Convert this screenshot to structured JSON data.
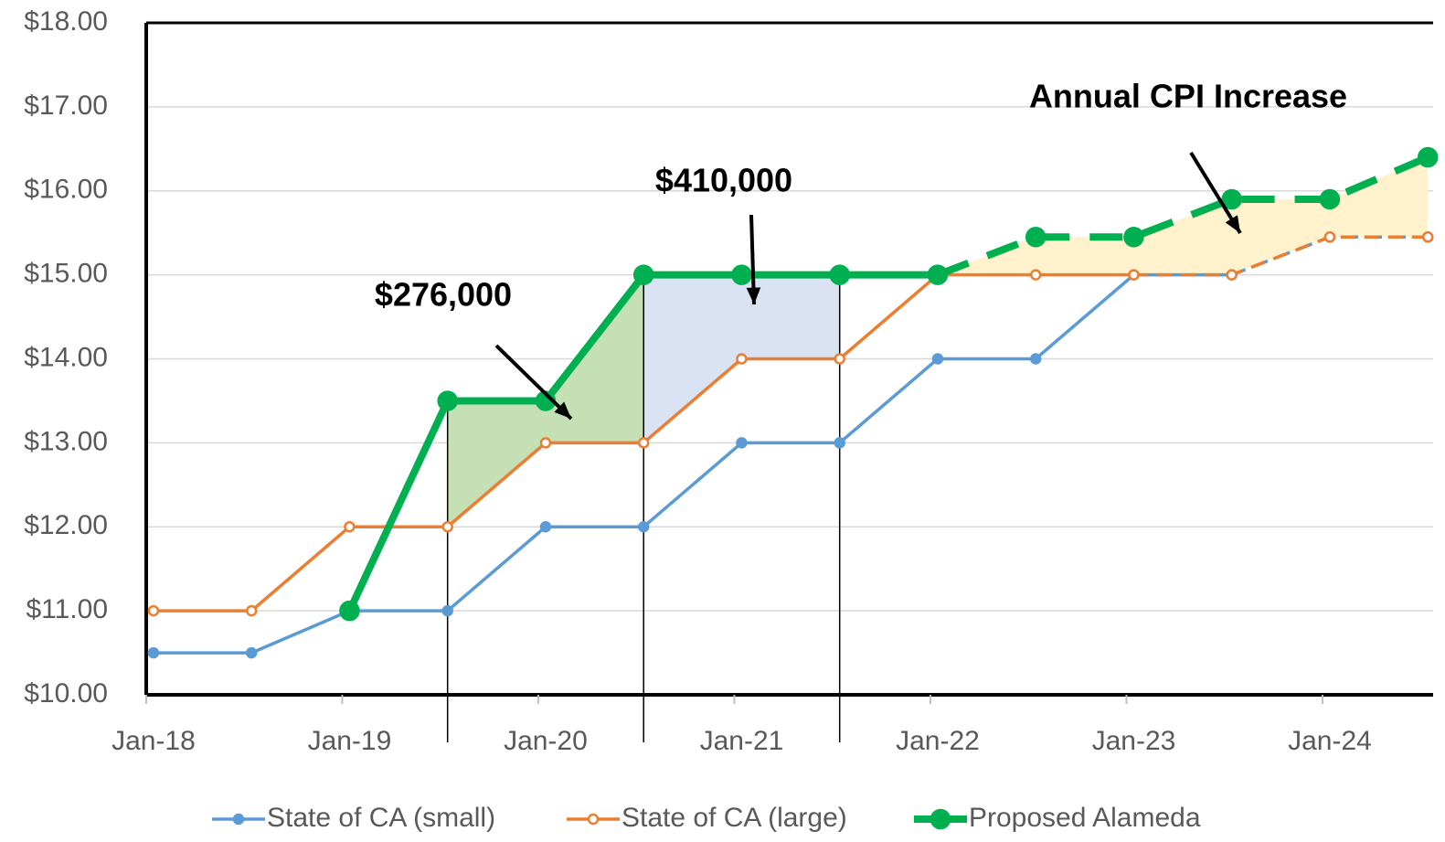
{
  "chart_data": {
    "type": "line",
    "x": [
      2018,
      2018.5,
      2019,
      2019.5,
      2020,
      2020.5,
      2021,
      2021.5,
      2022,
      2022.5,
      2023,
      2023.5,
      2024,
      2024.5
    ],
    "series": [
      {
        "name": "State of CA (small)",
        "color": "#5b9bd5",
        "dashed_from": 11,
        "values": [
          10.5,
          10.5,
          11,
          11,
          12,
          12,
          13,
          13,
          14,
          14,
          15,
          15,
          15.45,
          15.45
        ]
      },
      {
        "name": "State of CA (large)",
        "color": "#ed7d31",
        "dashed_from": 10,
        "values": [
          11,
          11,
          12,
          12,
          13,
          13,
          14,
          14,
          15,
          15,
          15,
          15,
          15.45,
          15.45
        ]
      },
      {
        "name": "Proposed Alameda",
        "color": "#00b050",
        "dashed_from": 8,
        "values": [
          null,
          null,
          11,
          13.5,
          13.5,
          15,
          15,
          15,
          15,
          15.45,
          15.45,
          15.9,
          15.9,
          16.4
        ]
      }
    ],
    "annotations": [
      "$276,000",
      "$410,000",
      "Annual CPI Increase"
    ],
    "shaded_ranges": [
      {
        "x": [
          2019.5,
          2020.5
        ],
        "color": "#c5e0b4"
      },
      {
        "x": [
          2020.5,
          2021.5
        ],
        "color": "#dae3f3"
      },
      {
        "x": [
          2022,
          2024.5
        ],
        "color": "#fff2cc"
      }
    ],
    "xlim": [
      2017.963,
      2024.527
    ],
    "xticks": [
      {
        "value": 2018,
        "label": "Jan-18"
      },
      {
        "value": 2019,
        "label": "Jan-19"
      },
      {
        "value": 2020,
        "label": "Jan-20"
      },
      {
        "value": 2021,
        "label": "Jan-21"
      },
      {
        "value": 2022,
        "label": "Jan-22"
      },
      {
        "value": 2023,
        "label": "Jan-23"
      },
      {
        "value": 2024,
        "label": "Jan-24"
      }
    ],
    "ylim": [
      10,
      18
    ],
    "yticks": [
      {
        "value": 10,
        "label": "$10.00"
      },
      {
        "value": 11,
        "label": "$11.00"
      },
      {
        "value": 12,
        "label": "$12.00"
      },
      {
        "value": 13,
        "label": "$13.00"
      },
      {
        "value": 14,
        "label": "$14.00"
      },
      {
        "value": 15,
        "label": "$15.00"
      },
      {
        "value": 16,
        "label": "$16.00"
      },
      {
        "value": 17,
        "label": "$17.00"
      },
      {
        "value": 18,
        "label": "$18.00"
      }
    ],
    "grid": true,
    "legend": "bottom"
  }
}
